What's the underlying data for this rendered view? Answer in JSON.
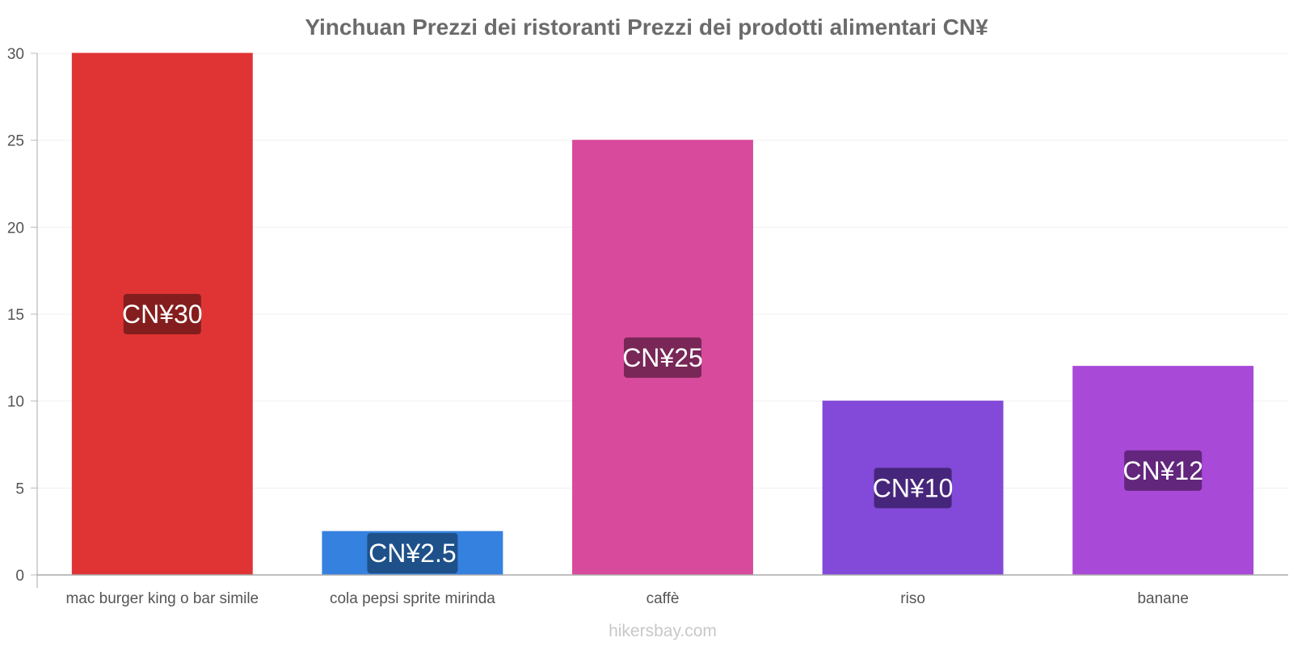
{
  "chart_data": {
    "type": "bar",
    "title": "Yinchuan Prezzi dei ristoranti Prezzi dei prodotti alimentari CN¥",
    "xlabel": "",
    "ylabel": "",
    "ylim": [
      0,
      30
    ],
    "yticks": [
      "0",
      "5",
      "10",
      "15",
      "20",
      "25",
      "30"
    ],
    "categories": [
      "mac burger king o bar simile",
      "cola pepsi sprite mirinda",
      "caffè",
      "riso",
      "banane"
    ],
    "values": [
      30,
      2.5,
      25,
      10,
      12
    ],
    "data_labels": [
      "CN¥30",
      "CN¥2.5",
      "CN¥25",
      "CN¥10",
      "CN¥12"
    ],
    "bar_colors": [
      "#e03434",
      "#3581e0",
      "#d84a9b",
      "#8349d8",
      "#a849d8"
    ],
    "label_bg_colors": [
      "#7a1c1c",
      "#1c4a80",
      "#6e2350",
      "#3f2270",
      "#5a2272"
    ],
    "gridlines": true
  },
  "watermark": "hikersbay.com"
}
